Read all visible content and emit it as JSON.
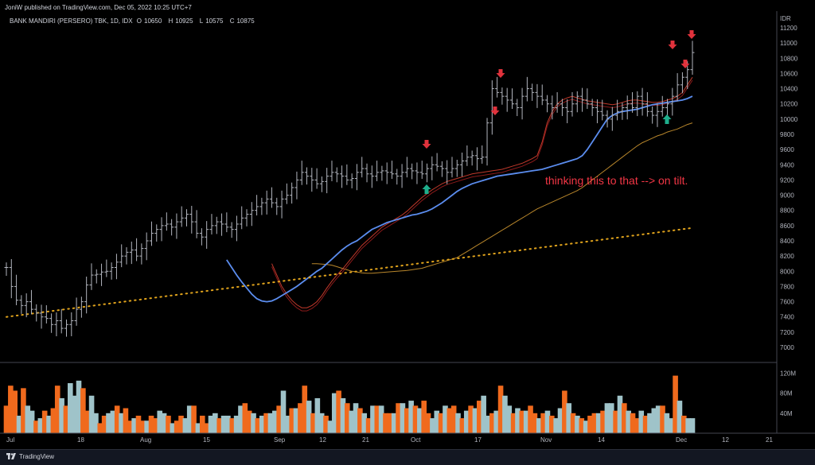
{
  "header": {
    "published": "JoniW published on TradingView.com, Dec 05, 2022 10:25 UTC+7"
  },
  "symbol": {
    "name": "BANK MANDIRI (PERSERO) TBK, 1D, IDX",
    "open_label": "O",
    "open": "10650",
    "high_label": "H",
    "high": "10925",
    "low_label": "L",
    "low": "10575",
    "close_label": "C",
    "close": "10875"
  },
  "footer": {
    "brand": "TradingView"
  },
  "colors": {
    "background": "#000000",
    "page": "#131722",
    "bar": "#b2b5be",
    "ma_fast_red": "#c0392b",
    "ma_red2": "#8b1a1a",
    "ma_blue": "#5b8def",
    "ma_orange": "#b8862b",
    "ma_dotted": "#e0a31c",
    "vol_up": "#9fc3c9",
    "vol_down": "#f06a1d",
    "arrow_down": "#e0323c",
    "arrow_up": "#1eae8c",
    "annotation": "#f23645"
  },
  "chart_data": {
    "type": "ohlc",
    "currency_label": "IDR",
    "price_ticks": [
      "11200",
      "11000",
      "10800",
      "10600",
      "10400",
      "10200",
      "10000",
      "9800",
      "9600",
      "9400",
      "9200",
      "9000",
      "8800",
      "8600",
      "8400",
      "8200",
      "8000",
      "7800",
      "7600",
      "7400",
      "7200",
      "7000"
    ],
    "ylim": [
      6800,
      11300
    ],
    "volume_ticks": [
      "120M",
      "80M",
      "40M"
    ],
    "volume_ylim": [
      0,
      135
    ],
    "x_ticks": [
      "Jul",
      "18",
      "Aug",
      "15",
      "Sep",
      "12",
      "21",
      "Oct",
      "17",
      "Nov",
      "14",
      "Dec",
      "12",
      "21"
    ],
    "annotation": "thinking this to that --> on tilt.",
    "arrows_down_bar_index": [
      108,
      113,
      115,
      171,
      175,
      176
    ],
    "arrows_up_bar_index": [
      108,
      168
    ],
    "closes": [
      8050,
      7800,
      7620,
      7550,
      7600,
      7500,
      7450,
      7400,
      7380,
      7300,
      7350,
      7250,
      7300,
      7350,
      7500,
      7600,
      7820,
      7950,
      7960,
      7990,
      8000,
      8050,
      8120,
      8200,
      8250,
      8280,
      8200,
      8300,
      8400,
      8500,
      8550,
      8600,
      8620,
      8580,
      8650,
      8700,
      8750,
      8650,
      8500,
      8450,
      8550,
      8600,
      8650,
      8620,
      8580,
      8550,
      8620,
      8700,
      8750,
      8800,
      8850,
      8900,
      8950,
      8900,
      8850,
      8950,
      9000,
      9100,
      9200,
      9300,
      9250,
      9200,
      9150,
      9180,
      9250,
      9300,
      9280,
      9250,
      9200,
      9220,
      9300,
      9350,
      9280,
      9250,
      9300,
      9320,
      9300,
      9280,
      9250,
      9300,
      9350,
      9320,
      9300,
      9280,
      9350,
      9400,
      9380,
      9350,
      9300,
      9350,
      9400,
      9450,
      9500,
      9520,
      9480,
      9500,
      9950,
      10400,
      10350,
      10300,
      10250,
      10200,
      10150,
      10300,
      10400,
      10350,
      10300,
      10250,
      10200,
      10150,
      10200,
      10150,
      10100,
      10200,
      10300,
      10250,
      10200,
      10150,
      10100,
      10050,
      10000,
      10050,
      10100,
      10150,
      10200,
      10150,
      10300,
      10200,
      10100,
      10050,
      10100,
      10150,
      10200,
      10300,
      10450,
      10550,
      10650,
      10875
    ],
    "highs_offset": 110,
    "lows_offset": 110,
    "ma_blue": [
      8150,
      8050,
      7950,
      7860,
      7780,
      7700,
      7640,
      7610,
      7600,
      7610,
      7640,
      7680,
      7720,
      7760,
      7800,
      7850,
      7900,
      7950,
      8000,
      8040,
      8100,
      8160,
      8220,
      8280,
      8330,
      8370,
      8400,
      8450,
      8500,
      8550,
      8580,
      8610,
      8640,
      8660,
      8680,
      8700,
      8720,
      8740,
      8750,
      8770,
      8790,
      8820,
      8860,
      8900,
      8950,
      9000,
      9050,
      9090,
      9120,
      9150,
      9170,
      9190,
      9210,
      9230,
      9250,
      9260,
      9270,
      9280,
      9290,
      9300,
      9310,
      9320,
      9330,
      9340,
      9360,
      9380,
      9400,
      9420,
      9440,
      9460,
      9480,
      9520,
      9600,
      9700,
      9800,
      9900,
      10000,
      10050,
      10080,
      10100,
      10110,
      10120,
      10130,
      10150,
      10170,
      10190,
      10200,
      10210,
      10220,
      10230,
      10240,
      10250,
      10270,
      10300
    ],
    "ma_red": [
      8100,
      7950,
      7800,
      7700,
      7620,
      7560,
      7520,
      7520,
      7550,
      7600,
      7680,
      7780,
      7870,
      7950,
      8020,
      8100,
      8180,
      8260,
      8340,
      8400,
      8460,
      8520,
      8580,
      8620,
      8660,
      8700,
      8740,
      8790,
      8850,
      8910,
      8970,
      9020,
      9070,
      9110,
      9150,
      9180,
      9200,
      9220,
      9240,
      9260,
      9280,
      9290,
      9300,
      9310,
      9320,
      9330,
      9340,
      9360,
      9380,
      9400,
      9420,
      9450,
      9480,
      9520,
      9700,
      9950,
      10100,
      10200,
      10250,
      10280,
      10300,
      10280,
      10260,
      10240,
      10230,
      10220,
      10210,
      10200,
      10190,
      10200,
      10220,
      10240,
      10250,
      10250,
      10240,
      10230,
      10220,
      10220,
      10230,
      10250,
      10270,
      10300,
      10350,
      10450,
      10550
    ],
    "ma_orange": [
      8100,
      8100,
      8095,
      8090,
      8080,
      8060,
      8040,
      8020,
      8000,
      7990,
      7980,
      7975,
      7975,
      7980,
      7985,
      7990,
      7995,
      8000,
      8005,
      8010,
      8020,
      8030,
      8040,
      8060,
      8080,
      8100,
      8120,
      8140,
      8160,
      8180,
      8220,
      8260,
      8300,
      8340,
      8380,
      8420,
      8460,
      8500,
      8540,
      8580,
      8620,
      8660,
      8700,
      8740,
      8780,
      8820,
      8850,
      8880,
      8910,
      8940,
      8970,
      9000,
      9030,
      9060,
      9100,
      9150,
      9200,
      9250,
      9300,
      9350,
      9400,
      9450,
      9500,
      9550,
      9600,
      9650,
      9690,
      9720,
      9750,
      9780,
      9800,
      9830,
      9850,
      9870,
      9900,
      9930,
      9950
    ],
    "ma_dotted_start": 7400,
    "ma_dotted_end": 8570,
    "volumes": [
      55,
      95,
      85,
      35,
      90,
      55,
      45,
      25,
      30,
      45,
      35,
      50,
      95,
      70,
      55,
      100,
      75,
      105,
      90,
      45,
      75,
      40,
      20,
      35,
      40,
      45,
      55,
      40,
      50,
      25,
      30,
      35,
      25,
      25,
      35,
      30,
      45,
      40,
      35,
      20,
      25,
      35,
      30,
      55,
      55,
      20,
      35,
      20,
      35,
      40,
      30,
      35,
      35,
      30,
      35,
      55,
      60,
      45,
      40,
      30,
      35,
      40,
      40,
      45,
      55,
      85,
      35,
      50,
      50,
      60,
      95,
      65,
      40,
      70,
      40,
      35,
      25,
      80,
      85,
      70,
      60,
      45,
      60,
      50,
      40,
      30,
      55,
      55,
      55,
      40,
      40,
      40,
      60,
      60,
      50,
      65,
      55,
      50,
      65,
      40,
      30,
      45,
      40,
      55,
      50,
      55,
      40,
      30,
      45,
      55,
      50,
      65,
      75,
      35,
      40,
      45,
      95,
      75,
      55,
      40,
      50,
      45,
      45,
      55,
      40,
      30,
      40,
      45,
      35,
      30,
      50,
      85,
      60,
      40,
      35,
      30,
      25,
      35,
      40,
      40,
      45,
      60,
      60,
      45,
      75,
      60,
      45,
      40,
      30,
      45,
      35,
      40,
      50,
      55,
      55,
      40,
      30,
      115,
      65,
      35,
      30,
      30
    ],
    "volume_is_down": [
      true,
      true,
      true,
      false,
      true,
      false,
      false,
      true,
      false,
      true,
      false,
      true,
      true,
      false,
      true,
      false,
      false,
      false,
      true,
      true,
      false,
      false,
      true,
      true,
      false,
      false,
      true,
      false,
      true,
      true,
      false,
      true,
      true,
      false,
      true,
      true,
      false,
      false,
      true,
      false,
      true,
      true,
      false,
      false,
      true,
      false,
      true,
      true,
      false,
      false,
      true,
      false,
      false,
      true,
      false,
      false,
      true,
      true,
      false,
      true,
      false,
      true,
      false,
      false,
      true,
      false,
      false,
      true,
      false,
      true,
      true,
      false,
      true,
      false,
      false,
      true,
      false,
      false,
      true,
      false,
      true,
      false,
      false,
      true,
      false,
      true,
      false,
      true,
      false,
      true,
      true,
      false,
      true,
      false,
      true,
      false,
      true,
      false,
      true,
      true,
      false,
      false,
      true,
      false,
      true,
      true,
      false,
      true,
      false,
      true,
      false,
      true,
      false,
      false,
      true,
      false,
      true,
      false,
      false,
      true,
      false,
      true,
      false,
      true,
      true,
      false,
      true,
      false,
      true,
      false,
      false,
      true,
      false,
      true,
      false,
      true,
      false,
      true,
      true,
      false,
      true,
      false,
      false,
      true,
      false,
      true,
      false,
      true,
      true,
      false,
      true,
      false,
      false,
      false,
      true,
      false,
      false,
      true,
      false,
      true,
      false,
      false
    ]
  }
}
